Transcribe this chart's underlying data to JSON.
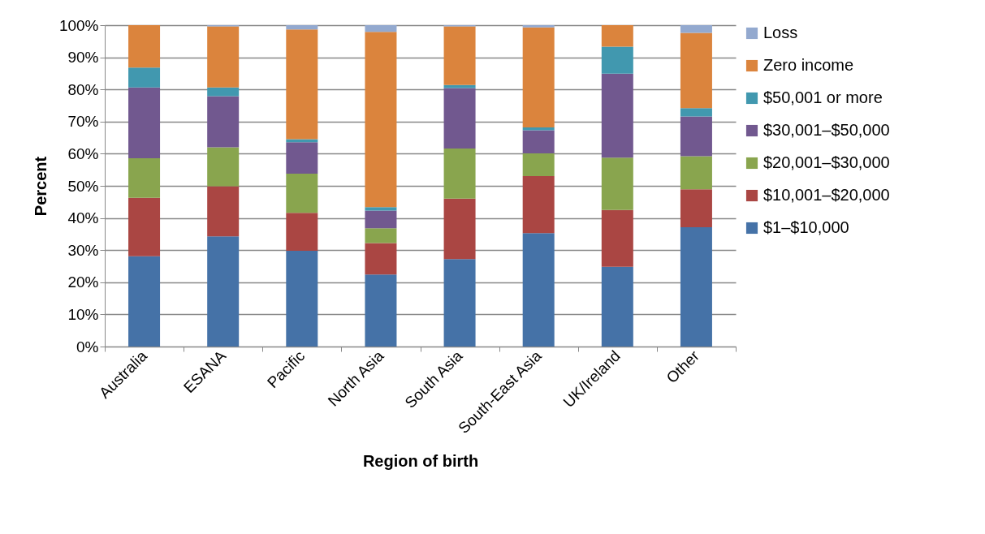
{
  "chart_data": {
    "type": "bar",
    "stacked": true,
    "xlabel": "Region of birth",
    "ylabel": "Percent",
    "categories": [
      "Australia",
      "ESANA",
      "Pacific",
      "North Asia",
      "South Asia",
      "South-East Asia",
      "UK/Ireland",
      "Other"
    ],
    "series": [
      {
        "name": "$1–$10,000",
        "color": "#4572a7",
        "values": [
          28.1,
          34.3,
          29.8,
          22.4,
          27.2,
          35.3,
          24.8,
          37.1
        ]
      },
      {
        "name": "$10,001–$20,000",
        "color": "#aa4643",
        "values": [
          18.2,
          15.6,
          11.8,
          9.8,
          18.8,
          17.7,
          17.7,
          11.8
        ]
      },
      {
        "name": "$20,001–$30,000",
        "color": "#89a54e",
        "values": [
          12.3,
          12.1,
          12.2,
          4.6,
          15.6,
          7.1,
          16.3,
          10.3
        ]
      },
      {
        "name": "$30,001–$50,000",
        "color": "#71588f",
        "values": [
          22.0,
          15.9,
          9.8,
          5.5,
          18.8,
          7.2,
          26.1,
          12.4
        ]
      },
      {
        "name": "$50,001 or more",
        "color": "#4198af",
        "values": [
          6.2,
          2.7,
          0.9,
          1.1,
          1.0,
          0.9,
          8.4,
          2.6
        ]
      },
      {
        "name": "Zero income",
        "color": "#db843d",
        "values": [
          13.2,
          19.0,
          34.2,
          54.5,
          18.2,
          31.1,
          6.7,
          23.4
        ]
      },
      {
        "name": "Loss",
        "color": "#93a9cf",
        "values": [
          0,
          0.4,
          1.3,
          2.1,
          0.4,
          0.7,
          0,
          2.4
        ]
      }
    ],
    "ylim": [
      0,
      100
    ],
    "yticks": [
      {
        "value": 0,
        "label": "0%"
      },
      {
        "value": 10,
        "label": "10%"
      },
      {
        "value": 20,
        "label": "20%"
      },
      {
        "value": 30,
        "label": "30%"
      },
      {
        "value": 40,
        "label": "40%"
      },
      {
        "value": 50,
        "label": "50%"
      },
      {
        "value": 60,
        "label": "60%"
      },
      {
        "value": 70,
        "label": "70%"
      },
      {
        "value": 80,
        "label": "80%"
      },
      {
        "value": 90,
        "label": "90%"
      },
      {
        "value": 100,
        "label": "100%"
      }
    ],
    "grid": "y",
    "legend": "right"
  }
}
